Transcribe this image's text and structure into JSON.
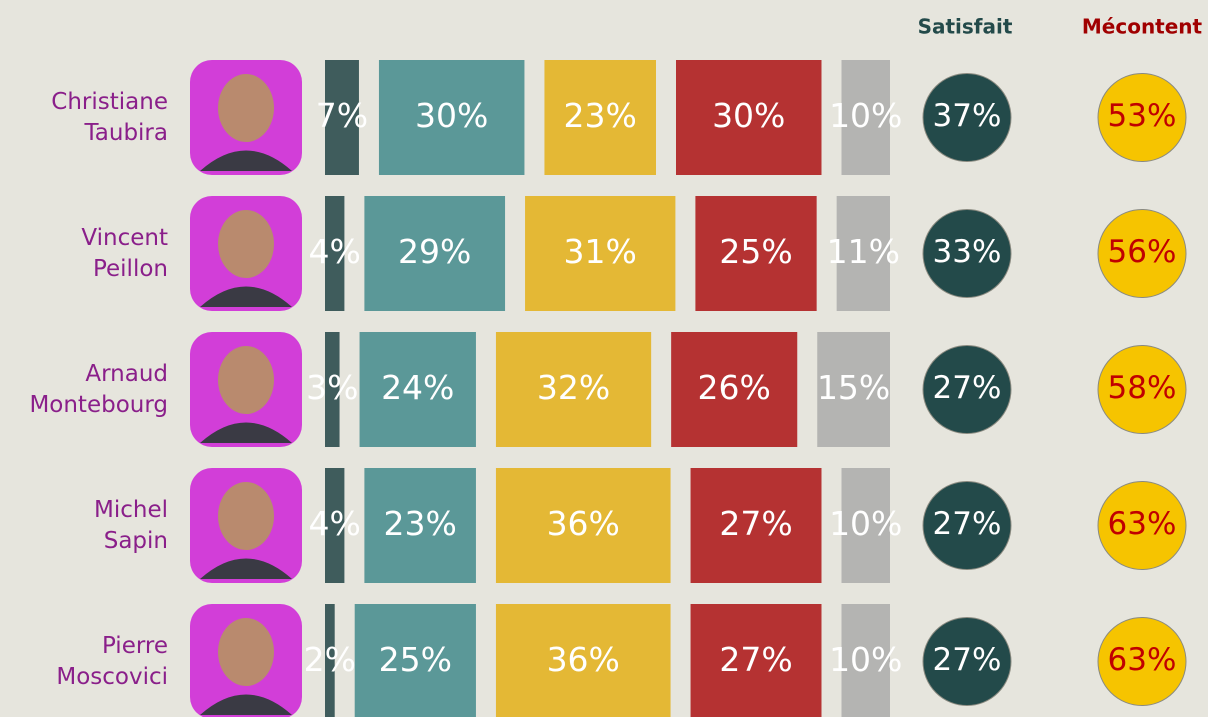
{
  "chart_data": {
    "type": "bar",
    "categories": [
      "Christiane Taubira",
      "Vincent Peillon",
      "Arnaud Montebourg",
      "Michel Sapin",
      "Pierre Moscovici"
    ],
    "series": [
      {
        "color": "#3f5c5c",
        "values": [
          7,
          4,
          3,
          4,
          2
        ],
        "value_labels": [
          "7%",
          "4%",
          "3%",
          "4%",
          "2%"
        ]
      },
      {
        "color": "#5b9898",
        "values": [
          30,
          29,
          24,
          23,
          25
        ],
        "value_labels": [
          "30%",
          "29%",
          "24%",
          "23%",
          "25%"
        ]
      },
      {
        "color": "#e4b835",
        "values": [
          23,
          31,
          32,
          36,
          36
        ],
        "value_labels": [
          "23%",
          "31%",
          "32%",
          "36%",
          "36%"
        ]
      },
      {
        "color": "#b53232",
        "values": [
          30,
          25,
          26,
          27,
          27
        ],
        "value_labels": [
          "30%",
          "25%",
          "26%",
          "27%",
          "27%"
        ]
      },
      {
        "color": "#b4b4b2",
        "values": [
          10,
          11,
          15,
          10,
          10
        ],
        "value_labels": [
          "10%",
          "11%",
          "15%",
          "10%",
          "10%"
        ]
      }
    ],
    "totals": [
      {
        "name": "Satisfait",
        "color": "#234a4a",
        "values": [
          37,
          33,
          27,
          27,
          27
        ],
        "value_labels": [
          "37%",
          "33%",
          "27%",
          "27%",
          "27%"
        ]
      },
      {
        "name": "Mécontent",
        "color": "#f6c400",
        "values": [
          53,
          56,
          58,
          63,
          63
        ],
        "value_labels": [
          "53%",
          "56%",
          "58%",
          "63%",
          "63%"
        ]
      }
    ]
  }
}
